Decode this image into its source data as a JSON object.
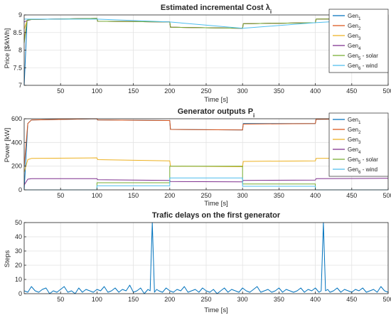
{
  "chart_data": [
    {
      "type": "line",
      "title": "Estimated incremental Cost λ",
      "title_sub": "i",
      "xlabel": "Time [s]",
      "ylabel": "Price [$/kWh]",
      "xlim": [
        0,
        500
      ],
      "ylim": [
        7,
        9
      ],
      "xticks": [
        50,
        100,
        150,
        200,
        250,
        300,
        350,
        400,
        450,
        500
      ],
      "yticks": [
        7,
        7.5,
        8,
        8.5,
        9
      ],
      "ytick_labels": [
        "7",
        "7.5",
        "8",
        "8.5",
        "9"
      ],
      "grid": true,
      "legend_position": "top-right",
      "series": [
        {
          "name": "Gen",
          "sub": "1",
          "color": "#0072BD",
          "x": [
            0,
            4,
            10,
            100,
            101,
            200,
            201,
            300,
            301,
            400,
            401,
            500
          ],
          "y": [
            7,
            8.85,
            8.87,
            8.9,
            8.82,
            8.8,
            8.65,
            8.62,
            8.75,
            8.78,
            8.88,
            8.9
          ]
        },
        {
          "name": "Gen",
          "sub": "2",
          "color": "#D95319",
          "x": [
            0,
            4,
            10,
            100,
            101,
            200,
            201,
            300,
            301,
            400,
            401,
            500
          ],
          "y": [
            8.3,
            8.84,
            8.87,
            8.9,
            8.82,
            8.8,
            8.65,
            8.62,
            8.75,
            8.78,
            8.88,
            8.9
          ]
        },
        {
          "name": "Gen",
          "sub": "3",
          "color": "#EDB120",
          "x": [
            0,
            4,
            10,
            100,
            101,
            200,
            201,
            300,
            301,
            400,
            401,
            500
          ],
          "y": [
            8.6,
            8.84,
            8.87,
            8.9,
            8.82,
            8.8,
            8.65,
            8.62,
            8.75,
            8.78,
            8.88,
            8.9
          ]
        },
        {
          "name": "Gen",
          "sub": "4",
          "color": "#7E2F8E",
          "x": [
            0,
            4,
            10,
            100,
            101,
            200,
            201,
            300,
            301,
            400,
            401,
            500
          ],
          "y": [
            8.8,
            8.84,
            8.87,
            8.9,
            8.82,
            8.8,
            8.65,
            8.62,
            8.75,
            8.78,
            8.88,
            8.9
          ]
        },
        {
          "name": "Gen",
          "sub": "5",
          "suffix": " - solar",
          "color": "#77AC30",
          "x": [
            0,
            4,
            10,
            100,
            101,
            200,
            201,
            300,
            301,
            400,
            401,
            500
          ],
          "y": [
            8.2,
            8.85,
            8.87,
            8.9,
            8.82,
            8.8,
            8.65,
            8.62,
            8.75,
            8.78,
            8.88,
            8.9
          ]
        },
        {
          "name": "Gen",
          "sub": "6",
          "suffix": " - wind",
          "color": "#4DBEEE",
          "x": [
            0,
            10,
            100,
            200,
            300,
            400,
            500
          ],
          "y": [
            8.88,
            8.88,
            8.88,
            8.8,
            8.62,
            8.78,
            8.9
          ]
        }
      ]
    },
    {
      "type": "line",
      "title": "Generator outputs P",
      "title_sub": "i",
      "xlabel": "Time [s]",
      "ylabel": "Power [kW]",
      "xlim": [
        0,
        500
      ],
      "ylim": [
        0,
        600
      ],
      "xticks": [
        50,
        100,
        150,
        200,
        250,
        300,
        350,
        400,
        450,
        500
      ],
      "yticks": [
        0,
        200,
        400,
        600
      ],
      "ytick_labels": [
        "0",
        "200",
        "400",
        "600"
      ],
      "grid": true,
      "legend_position": "top-right",
      "series": [
        {
          "name": "Gen",
          "sub": "1",
          "color": "#0072BD",
          "x": [
            0,
            5,
            10,
            100,
            101,
            200,
            201,
            300,
            301,
            400,
            401,
            500
          ],
          "y": [
            0,
            560,
            590,
            600,
            590,
            585,
            510,
            505,
            560,
            560,
            595,
            600
          ]
        },
        {
          "name": "Gen",
          "sub": "2",
          "color": "#D95319",
          "x": [
            0,
            5,
            10,
            100,
            101,
            200,
            201,
            300,
            301,
            400,
            401,
            500
          ],
          "y": [
            200,
            560,
            590,
            600,
            590,
            585,
            510,
            505,
            555,
            560,
            595,
            600
          ]
        },
        {
          "name": "Gen",
          "sub": "3",
          "color": "#EDB120",
          "x": [
            0,
            5,
            10,
            100,
            101,
            200,
            201,
            300,
            301,
            400,
            401,
            500
          ],
          "y": [
            150,
            255,
            265,
            270,
            255,
            245,
            200,
            195,
            240,
            245,
            265,
            270
          ]
        },
        {
          "name": "Gen",
          "sub": "4",
          "color": "#7E2F8E",
          "x": [
            0,
            5,
            10,
            100,
            101,
            200,
            201,
            300,
            301,
            400,
            401,
            500
          ],
          "y": [
            40,
            90,
            95,
            95,
            85,
            80,
            70,
            68,
            80,
            82,
            95,
            97
          ]
        },
        {
          "name": "Gen",
          "sub": "5",
          "suffix": " - solar",
          "color": "#77AC30",
          "x": [
            0,
            100,
            100,
            200,
            200,
            300,
            300,
            400,
            400,
            500
          ],
          "y": [
            0,
            0,
            60,
            60,
            200,
            200,
            50,
            50,
            0,
            0
          ]
        },
        {
          "name": "Gen",
          "sub": "6",
          "suffix": " - wind",
          "color": "#4DBEEE",
          "x": [
            0,
            100,
            100,
            200,
            200,
            300,
            300,
            400,
            400,
            500
          ],
          "y": [
            0,
            0,
            35,
            35,
            100,
            100,
            30,
            30,
            0,
            0
          ]
        }
      ]
    },
    {
      "type": "line",
      "title": "Trafic delays on the first generator",
      "xlabel": "Time [s]",
      "ylabel": "Steps",
      "xlim": [
        0,
        500
      ],
      "ylim": [
        0,
        50
      ],
      "xticks": [
        50,
        100,
        150,
        200,
        250,
        300,
        350,
        400,
        450,
        500
      ],
      "yticks": [
        0,
        10,
        20,
        30,
        40,
        50
      ],
      "ytick_labels": [
        "0",
        "10",
        "20",
        "30",
        "40",
        "50"
      ],
      "grid": true,
      "series": [
        {
          "color": "#0072BD",
          "x": [
            0,
            5,
            10,
            15,
            20,
            25,
            30,
            35,
            40,
            45,
            50,
            55,
            60,
            65,
            70,
            75,
            80,
            85,
            90,
            95,
            100,
            105,
            110,
            115,
            120,
            125,
            130,
            135,
            140,
            145,
            150,
            155,
            160,
            165,
            170,
            173,
            176,
            179,
            182,
            185,
            190,
            195,
            200,
            205,
            210,
            215,
            220,
            225,
            230,
            235,
            240,
            245,
            250,
            255,
            260,
            265,
            270,
            275,
            280,
            285,
            290,
            295,
            300,
            305,
            310,
            315,
            320,
            325,
            330,
            335,
            340,
            345,
            350,
            355,
            360,
            365,
            370,
            375,
            380,
            385,
            390,
            395,
            400,
            405,
            408,
            411,
            414,
            417,
            420,
            425,
            430,
            435,
            440,
            445,
            450,
            455,
            460,
            465,
            470,
            475,
            480,
            485,
            490,
            495,
            500
          ],
          "y": [
            2,
            1,
            5,
            2,
            1,
            3,
            4,
            0,
            2,
            1,
            3,
            5,
            1,
            2,
            0,
            4,
            1,
            3,
            2,
            1,
            3,
            2,
            5,
            1,
            2,
            4,
            1,
            3,
            2,
            6,
            1,
            2,
            4,
            0,
            3,
            2,
            50,
            1,
            3,
            2,
            1,
            4,
            2,
            1,
            3,
            2,
            5,
            1,
            2,
            3,
            1,
            4,
            2,
            1,
            3,
            0,
            2,
            4,
            1,
            3,
            2,
            1,
            4,
            2,
            1,
            3,
            5,
            1,
            2,
            3,
            1,
            2,
            4,
            1,
            3,
            2,
            1,
            2,
            4,
            1,
            3,
            2,
            4,
            1,
            2,
            50,
            2,
            3,
            1,
            2,
            4,
            1,
            3,
            2,
            1,
            3,
            2,
            4,
            1,
            2,
            3,
            1,
            5,
            2,
            1
          ]
        }
      ]
    }
  ]
}
